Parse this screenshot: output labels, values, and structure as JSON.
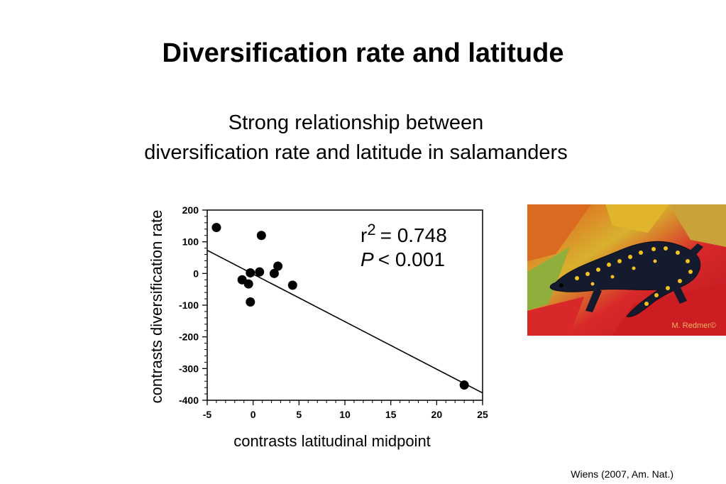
{
  "title": "Diversification rate and latitude",
  "subtitle_lines": [
    "Strong relationship between",
    "diversification rate and latitude in salamanders"
  ],
  "citation": "Wiens (2007, Am. Nat.)",
  "photo": {
    "subject": "spotted salamander",
    "credit": "M. Redmer©"
  },
  "stats": {
    "r_prefix": "r",
    "r_sup": "2",
    "r_value": "= 0.748",
    "p_symbol": "P",
    "p_value": "< 0.001"
  },
  "chart_data": {
    "type": "scatter",
    "title": "",
    "xlabel": "contrasts latitudinal midpoint",
    "ylabel": "contrasts diversification rate",
    "xlim": [
      -5,
      25
    ],
    "ylim": [
      -400,
      200
    ],
    "xticks": [
      -5,
      0,
      5,
      10,
      15,
      20,
      25
    ],
    "xtick_labels": [
      "-5",
      "0",
      "5",
      "10",
      "15",
      "20",
      "25"
    ],
    "yticks": [
      200,
      100,
      0,
      -100,
      -200,
      -300,
      -400
    ],
    "ytick_labels": [
      "200",
      "100",
      "0",
      "-100",
      "-200",
      "-300",
      "-400"
    ],
    "points": [
      {
        "x": -4,
        "y": 145
      },
      {
        "x": 0.9,
        "y": 120
      },
      {
        "x": 2.7,
        "y": 23
      },
      {
        "x": -1.2,
        "y": -20
      },
      {
        "x": -0.3,
        "y": 2
      },
      {
        "x": 0.7,
        "y": 5
      },
      {
        "x": 2.3,
        "y": 0
      },
      {
        "x": -0.5,
        "y": -33
      },
      {
        "x": 4.3,
        "y": -37
      },
      {
        "x": -0.3,
        "y": -90
      },
      {
        "x": 23,
        "y": -352
      }
    ],
    "fit_line": [
      {
        "x": -5,
        "y": 73
      },
      {
        "x": 25,
        "y": -377
      }
    ],
    "grid": false,
    "color": "#000000"
  }
}
